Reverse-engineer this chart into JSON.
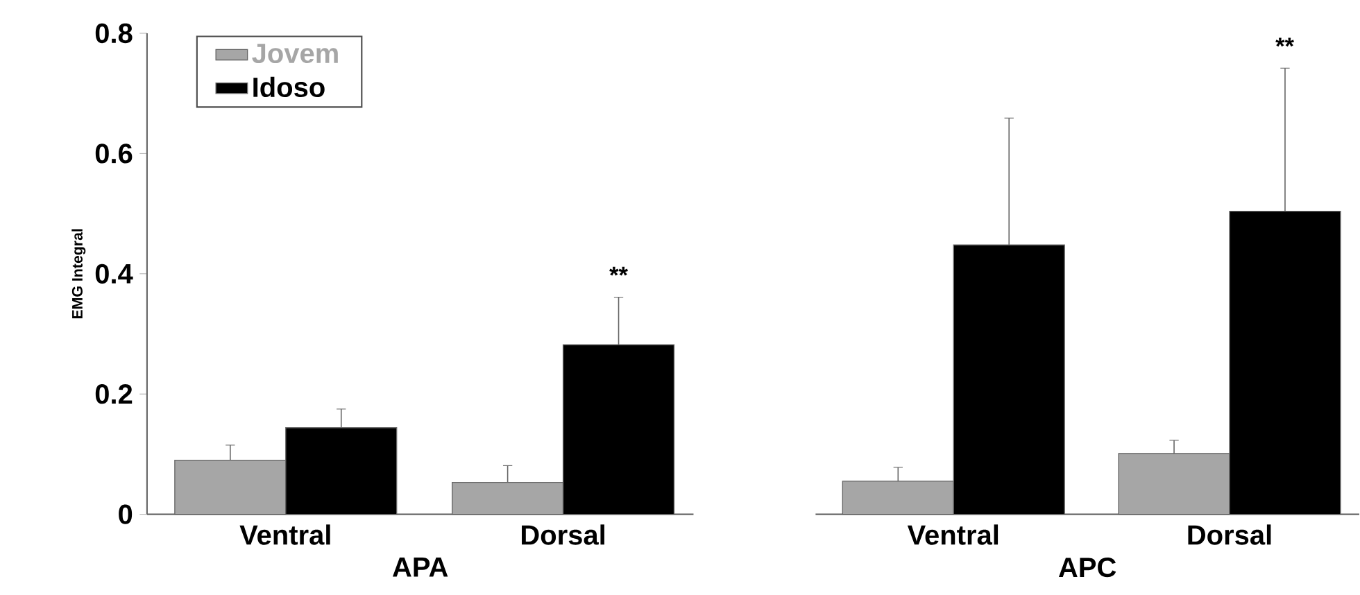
{
  "chart_data": [
    {
      "type": "bar",
      "xlabel": "APA",
      "ylabel": "EMG Integral",
      "categories": [
        "Ventral",
        "Dorsal"
      ],
      "series": [
        {
          "name": "Jovem",
          "color": "#a6a6a6",
          "values": [
            0.09,
            0.053
          ],
          "errors": [
            [
              0.09,
              0.115
            ],
            [
              0.053,
              0.081
            ]
          ]
        },
        {
          "name": "Idoso",
          "color": "#000000",
          "values": [
            0.144,
            0.282
          ],
          "errors": [
            [
              0.144,
              0.175
            ],
            [
              0.282,
              0.361
            ]
          ]
        }
      ],
      "ylim": [
        0,
        0.8
      ],
      "yticks": [
        0,
        0.2,
        0.4,
        0.6,
        0.8
      ],
      "legend": "top left",
      "annotations": [
        "**"
      ]
    },
    {
      "type": "bar",
      "xlabel": "APC",
      "categories": [
        "Ventral",
        "Dorsal"
      ],
      "series": [
        {
          "color": "#a6a6a6",
          "values": [
            0.055,
            0.101
          ],
          "errors": [
            [
              0.055,
              0.078
            ],
            [
              0.101,
              0.123
            ]
          ]
        },
        {
          "color": "#000000",
          "values": [
            0.448,
            0.504
          ],
          "errors": [
            [
              0.448,
              0.659
            ],
            [
              0.504,
              0.742
            ]
          ]
        }
      ],
      "ylim": [
        0,
        0.8
      ],
      "yticks": [
        0,
        0.2,
        0.4,
        0.6,
        0.8
      ],
      "tick_labels": "x",
      "annotations": [
        "**"
      ]
    }
  ]
}
